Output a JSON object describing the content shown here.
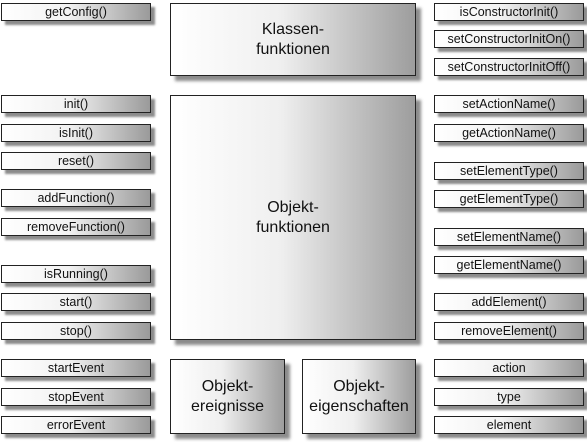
{
  "left_items": [
    "getConfig()",
    "init()",
    "isInit()",
    "reset()",
    "addFunction()",
    "removeFunction()",
    "isRunning()",
    "start()",
    "stop()",
    "startEvent",
    "stopEvent",
    "errorEvent"
  ],
  "right_items": [
    "isConstructorInit()",
    "setConstructorInitOn()",
    "setConstructorInitOff()",
    "setActionName()",
    "getActionName()",
    "setElementType()",
    "getElementType()",
    "setElementName()",
    "getElementName()",
    "addElement()",
    "removeElement()",
    "action",
    "type",
    "element"
  ],
  "boxes": {
    "klassen": "Klassen-\nfunktionen",
    "objekt_funktionen": "Objekt-\nfunktionen",
    "objekt_ereignisse": "Objekt-\nereignisse",
    "objekt_eigenschaften": "Objekt-\neigenschaften"
  }
}
